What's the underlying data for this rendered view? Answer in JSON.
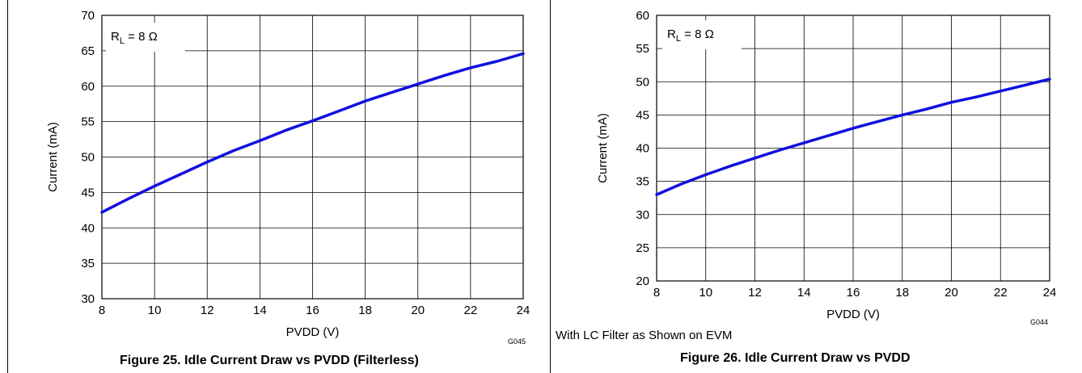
{
  "figures": [
    {
      "caption": "Figure 25. Idle Current Draw vs PVDD (Filterless)",
      "code": "G045",
      "note": ""
    },
    {
      "caption": "Figure 26. Idle Current Draw vs PVDD",
      "code": "G044",
      "note": "With LC Filter as Shown on EVM"
    }
  ],
  "chart_data": [
    {
      "type": "line",
      "title": "",
      "xlabel": "PVDD (V)",
      "ylabel": "Current (mA)",
      "xlim": [
        8,
        24
      ],
      "ylim": [
        30,
        70
      ],
      "xticks": [
        8,
        10,
        12,
        14,
        16,
        18,
        20,
        22,
        24
      ],
      "yticks": [
        30,
        35,
        40,
        45,
        50,
        55,
        60,
        65,
        70
      ],
      "grid": true,
      "annotation": {
        "main": "R",
        "sub": "L",
        "rest": " = 8 Ω"
      },
      "line_color": "#1010e0",
      "series": [
        {
          "x": [
            8,
            9,
            10,
            11,
            12,
            13,
            14,
            15,
            16,
            17,
            18,
            19,
            20,
            21,
            22,
            23,
            24
          ],
          "y": [
            42.2,
            44.1,
            45.9,
            47.6,
            49.3,
            50.9,
            52.3,
            53.8,
            55.1,
            56.5,
            57.9,
            59.1,
            60.3,
            61.5,
            62.6,
            63.5,
            64.6
          ]
        }
      ]
    },
    {
      "type": "line",
      "title": "",
      "xlabel": "PVDD (V)",
      "ylabel": "Current (mA)",
      "xlim": [
        8,
        24
      ],
      "ylim": [
        20,
        60
      ],
      "xticks": [
        8,
        10,
        12,
        14,
        16,
        18,
        20,
        22,
        24
      ],
      "yticks": [
        20,
        25,
        30,
        35,
        40,
        45,
        50,
        55,
        60
      ],
      "grid": true,
      "annotation": {
        "main": "R",
        "sub": "L",
        "rest": " = 8 Ω"
      },
      "line_color": "#1010e0",
      "series": [
        {
          "x": [
            8,
            9,
            10,
            11,
            12,
            13,
            14,
            15,
            16,
            17,
            18,
            19,
            20,
            21,
            22,
            23,
            24
          ],
          "y": [
            33.0,
            34.6,
            36.0,
            37.3,
            38.5,
            39.7,
            40.8,
            41.9,
            43.0,
            44.0,
            45.0,
            45.9,
            46.9,
            47.7,
            48.6,
            49.5,
            50.4
          ]
        }
      ]
    }
  ]
}
